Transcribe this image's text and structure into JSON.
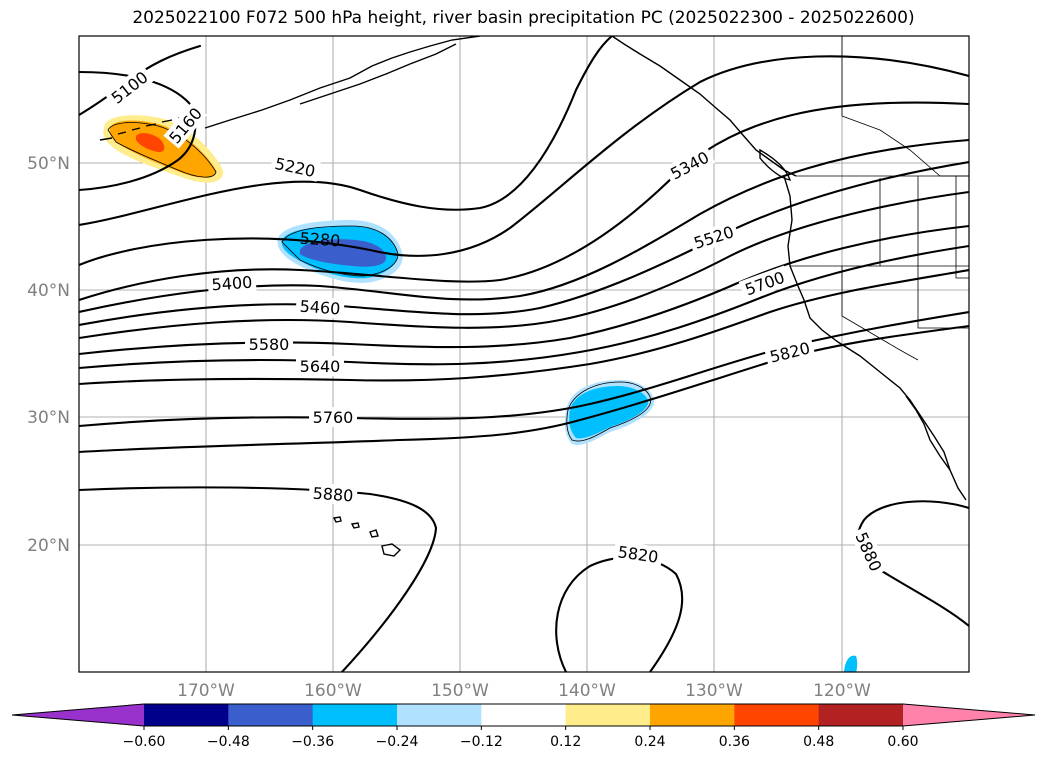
{
  "title": "2025022100 F072 500 hPa height, river basin precipitation PC (2025022300 - 2025022600)",
  "map": {
    "lon_range": [
      -180,
      -110
    ],
    "lat_range": [
      10,
      60
    ],
    "lat_labels": [
      "20°N",
      "30°N",
      "40°N",
      "50°N"
    ],
    "lon_labels": [
      "170°W",
      "160°W",
      "150°W",
      "140°W",
      "130°W",
      "120°W"
    ],
    "contour_labels": [
      "5100",
      "5160",
      "5220",
      "5280",
      "5340",
      "5400",
      "5460",
      "5520",
      "5580",
      "5640",
      "5700",
      "5760",
      "5820",
      "5880",
      "5820",
      "5880"
    ]
  },
  "colorbar": {
    "colors": [
      "#9932cc",
      "#00008b",
      "#3a5fcd",
      "#00bfff",
      "#b0e2ff",
      "#ffffff",
      "#ffec8b",
      "#ffa500",
      "#ff4500",
      "#b22222",
      "#ff82ab"
    ],
    "tick_labels": [
      "−0.60",
      "−0.48",
      "−0.36",
      "−0.24",
      "−0.12",
      "0.12",
      "0.24",
      "0.36",
      "0.48",
      "0.60"
    ]
  }
}
